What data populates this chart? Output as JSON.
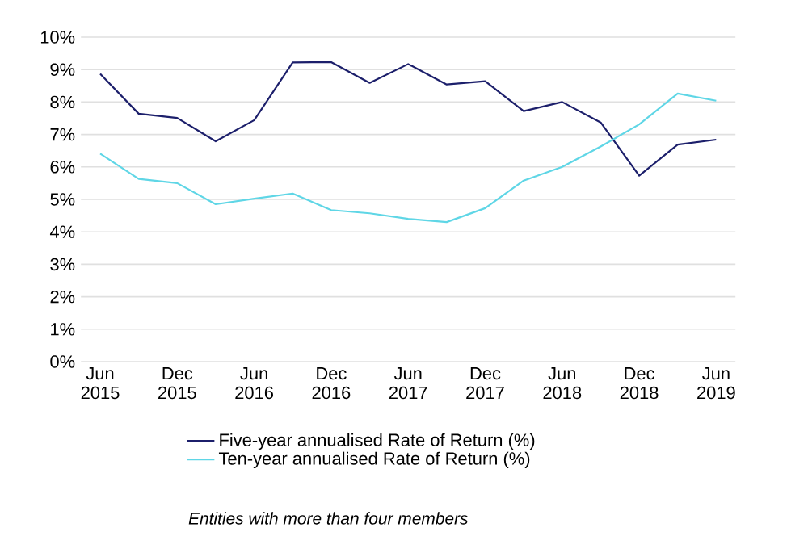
{
  "chart_data": {
    "type": "line",
    "categories": [
      "Jun 2015",
      null,
      "Dec 2015",
      null,
      "Jun 2016",
      null,
      "Dec 2016",
      null,
      "Jun 2017",
      null,
      "Dec 2017",
      null,
      "Jun 2018",
      null,
      "Dec 2018",
      null,
      "Jun 2019"
    ],
    "series": [
      {
        "name": "Five-year annualised Rate of Return (%)",
        "color": "#1c1f6b",
        "values": [
          8.87,
          7.64,
          7.51,
          6.79,
          7.44,
          9.22,
          9.23,
          8.59,
          9.17,
          8.54,
          8.64,
          7.72,
          8.0,
          7.37,
          5.73,
          6.69,
          6.84
        ]
      },
      {
        "name": "Ten-year annualised Rate of Return (%)",
        "color": "#5fd6e6",
        "values": [
          6.41,
          5.63,
          5.5,
          4.85,
          5.02,
          5.18,
          4.67,
          4.57,
          4.4,
          4.3,
          4.73,
          5.58,
          6.0,
          6.63,
          7.31,
          8.26,
          8.04
        ]
      }
    ],
    "ylim": [
      0,
      10
    ],
    "yticks": [
      {
        "value": 0,
        "label": "0%"
      },
      {
        "value": 1,
        "label": "1%"
      },
      {
        "value": 2,
        "label": "2%"
      },
      {
        "value": 3,
        "label": "3%"
      },
      {
        "value": 4,
        "label": "4%"
      },
      {
        "value": 5,
        "label": "5%"
      },
      {
        "value": 6,
        "label": "6%"
      },
      {
        "value": 7,
        "label": "7%"
      },
      {
        "value": 8,
        "label": "8%"
      },
      {
        "value": 9,
        "label": "9%"
      },
      {
        "value": 10,
        "label": "10%"
      }
    ],
    "grid": "y",
    "legend": "bottom",
    "marker": "none",
    "line_style": "solid",
    "annotations": [
      "Entities with more than four members"
    ]
  }
}
